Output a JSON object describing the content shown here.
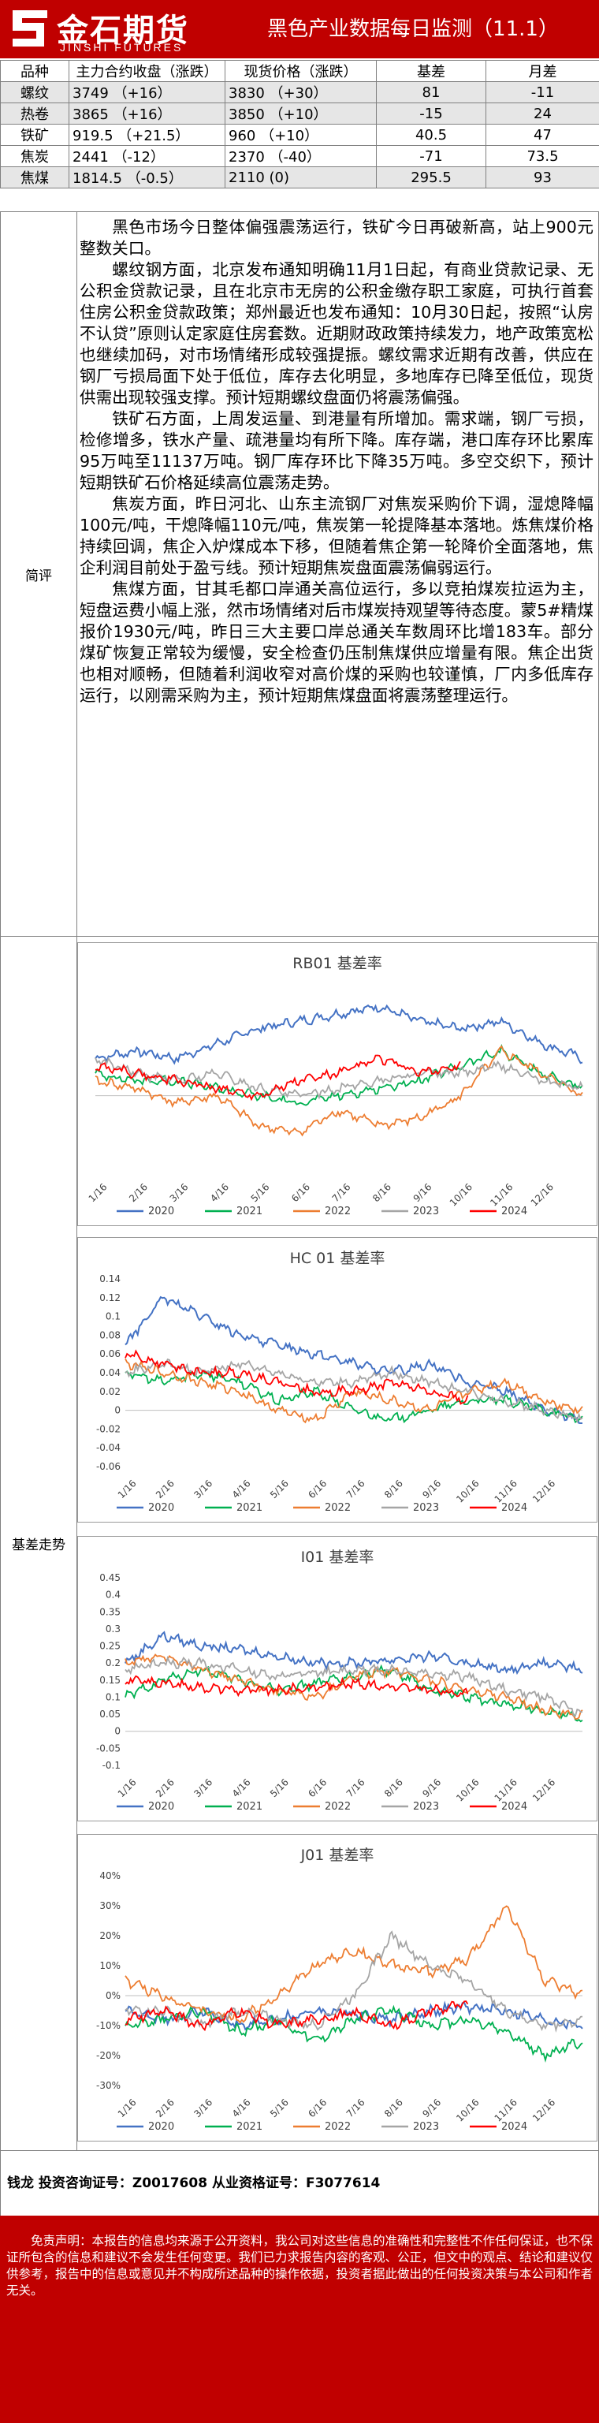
{
  "brand": {
    "name_cn": "金石期货",
    "name_en": "JINSHI FUTURES"
  },
  "report_title": "黑色产业数据每日监测（11.1）",
  "quote_table": {
    "headers": [
      "品种",
      "主力合约收盘（涨跌）",
      "现货价格（涨跌）",
      "基差",
      "月差"
    ],
    "rows": [
      {
        "name": "螺纹",
        "futures": "3749 （+16）",
        "spot": "3830 （+30）",
        "basis": "81",
        "spread": "-11"
      },
      {
        "name": "热卷",
        "futures": "3865 （+16）",
        "spot": "3850 （+10）",
        "basis": "-15",
        "spread": "24"
      },
      {
        "name": "铁矿",
        "futures": "919.5 （+21.5）",
        "spot": "960 （+10）",
        "basis": "40.5",
        "spread": "47"
      },
      {
        "name": "焦炭",
        "futures": "2441 （-12）",
        "spot": "2370 （-40）",
        "basis": "-71",
        "spread": "73.5"
      },
      {
        "name": "焦煤",
        "futures": "1814.5 （-0.5）",
        "spot": "2110 (0)",
        "basis": "295.5",
        "spread": "93"
      }
    ]
  },
  "commentary": {
    "label": "简评",
    "paragraphs": [
      "黑色市场今日整体偏强震荡运行，铁矿今日再破新高，站上900元整数关口。",
      "螺纹钢方面，北京发布通知明确11月1日起，有商业贷款记录、无公积金贷款记录，且在北京市无房的公积金缴存职工家庭，可执行首套住房公积金贷款政策；郑州最近也发布通知：10月30日起，按照“认房不认贷”原则认定家庭住房套数。近期财政政策持续发力，地产政策宽松也继续加码，对市场情绪形成较强提振。螺纹需求近期有改善，供应在钢厂亏损局面下处于低位，库存去化明显，多地库存已降至低位，现货供需出现较强支撑。预计短期螺纹盘面仍将震荡偏强。",
      "铁矿石方面，上周发运量、到港量有所增加。需求端，钢厂亏损，检修增多，铁水产量、疏港量均有所下降。库存端，港口库存环比累库95万吨至11137万吨。钢厂库存环比下降35万吨。多空交织下，预计短期铁矿石价格延续高位震荡走势。",
      "焦炭方面，昨日河北、山东主流钢厂对焦炭采购价下调，湿熄降幅100元/吨，干熄降幅110元/吨，焦炭第一轮提降基本落地。炼焦煤价格持续回调，焦企入炉煤成本下移，但随着焦企第一轮降价全面落地，焦企利润目前处于盈亏线。预计短期焦炭盘面震荡偏弱运行。",
      "焦煤方面，甘其毛都口岸通关高位运行，多以竞拍煤炭拉运为主，短盘运费小幅上涨，然市场情绪对后市煤炭持观望等待态度。蒙5#精煤报价1930元/吨，昨日三大主要口岸总通关车数周环比增183车。部分煤矿恢复正常较为缓慢，安全检查仍压制焦煤供应增量有限。焦企出货也相对顺畅，但随着利润收窄对高价煤的采购也较谨慎，厂内多低库存运行，以刚需采购为主，预计短期焦煤盘面将震荡整理运行。"
    ]
  },
  "charts_label": "基差走势",
  "colors": {
    "brand_red": "#c00000",
    "s2020": "#4472c4",
    "s2021": "#00b050",
    "s2022": "#ed7d31",
    "s2023": "#a5a5a5",
    "s2024": "#ff0000"
  },
  "chart_data": [
    {
      "type": "line",
      "title": "RB01 基差率",
      "x_ticks": [
        "1/16",
        "2/16",
        "3/16",
        "4/16",
        "5/16",
        "6/16",
        "7/16",
        "8/16",
        "9/16",
        "10/16",
        "11/16",
        "12/16"
      ],
      "ylim": [
        -0.1,
        0.15
      ],
      "y_ticks": [],
      "series": [
        {
          "name": "2020",
          "values": [
            0.05,
            0.06,
            0.05,
            0.07,
            0.09,
            0.1,
            0.11,
            0.12,
            0.1,
            0.09,
            0.1,
            0.07,
            0.05
          ]
        },
        {
          "name": "2021",
          "values": [
            0.03,
            0.02,
            0.02,
            0.01,
            0.0,
            -0.01,
            0.0,
            0.01,
            0.02,
            0.04,
            0.06,
            0.03,
            0.01
          ]
        },
        {
          "name": "2022",
          "values": [
            0.02,
            0.01,
            -0.01,
            0.0,
            -0.04,
            -0.05,
            -0.02,
            -0.04,
            -0.03,
            0.0,
            0.06,
            0.03,
            0.0
          ]
        },
        {
          "name": "2023",
          "values": [
            0.05,
            0.03,
            0.02,
            0.03,
            0.01,
            0.0,
            0.01,
            0.02,
            0.03,
            0.03,
            0.04,
            0.02,
            0.01
          ]
        },
        {
          "name": "2024",
          "values": [
            0.04,
            0.03,
            0.02,
            0.01,
            0.0,
            0.02,
            0.03,
            0.05,
            0.03,
            0.04,
            null,
            null,
            null
          ]
        }
      ]
    },
    {
      "type": "line",
      "title": "HC 01 基差率",
      "x_ticks": [
        "1/16",
        "2/16",
        "3/16",
        "4/16",
        "5/16",
        "6/16",
        "7/16",
        "8/16",
        "9/16",
        "10/16",
        "11/16",
        "12/16"
      ],
      "ylim": [
        -0.06,
        0.14
      ],
      "y_ticks": [
        "0.14",
        "0.12",
        "0.1",
        "0.08",
        "0.06",
        "0.04",
        "0.02",
        "0",
        "-0.02",
        "-0.04",
        "-0.06"
      ],
      "series": [
        {
          "name": "2020",
          "values": [
            0.07,
            0.12,
            0.1,
            0.08,
            0.07,
            0.06,
            0.05,
            0.04,
            0.05,
            0.03,
            0.02,
            0.0,
            -0.01
          ]
        },
        {
          "name": "2021",
          "values": [
            0.04,
            0.03,
            0.04,
            0.03,
            0.01,
            0.02,
            0.0,
            -0.01,
            0.0,
            0.01,
            0.01,
            0.0,
            -0.01
          ]
        },
        {
          "name": "2022",
          "values": [
            0.05,
            0.04,
            0.03,
            0.02,
            0.0,
            -0.01,
            0.02,
            0.01,
            0.0,
            0.02,
            0.03,
            0.01,
            0.0
          ]
        },
        {
          "name": "2023",
          "values": [
            0.04,
            0.05,
            0.04,
            0.05,
            0.04,
            0.03,
            0.03,
            0.04,
            0.03,
            0.02,
            0.01,
            0.0,
            -0.01
          ]
        },
        {
          "name": "2024",
          "values": [
            0.06,
            0.05,
            0.04,
            0.04,
            0.03,
            0.02,
            0.02,
            0.03,
            0.02,
            0.01,
            null,
            null,
            null
          ]
        }
      ]
    },
    {
      "type": "line",
      "title": "I01 基差率",
      "x_ticks": [
        "1/16",
        "2/16",
        "3/16",
        "4/16",
        "5/16",
        "6/16",
        "7/16",
        "8/16",
        "9/16",
        "10/16",
        "11/16",
        "12/16"
      ],
      "ylim": [
        -0.1,
        0.45
      ],
      "y_ticks": [
        "0.45",
        "0.4",
        "0.35",
        "0.3",
        "0.25",
        "0.2",
        "0.15",
        "0.1",
        "0.05",
        "0",
        "-0.05",
        "-0.1"
      ],
      "series": [
        {
          "name": "2020",
          "values": [
            0.2,
            0.28,
            0.25,
            0.24,
            0.22,
            0.2,
            0.2,
            0.21,
            0.22,
            0.2,
            0.18,
            0.2,
            0.18
          ]
        },
        {
          "name": "2021",
          "values": [
            0.1,
            0.15,
            0.18,
            0.15,
            0.12,
            0.14,
            0.16,
            0.18,
            0.12,
            0.1,
            0.08,
            0.06,
            0.04
          ]
        },
        {
          "name": "2022",
          "values": [
            0.2,
            0.22,
            0.18,
            0.15,
            0.12,
            0.1,
            0.16,
            0.18,
            0.15,
            0.12,
            0.1,
            0.06,
            0.05
          ]
        },
        {
          "name": "2023",
          "values": [
            0.18,
            0.2,
            0.2,
            0.18,
            0.16,
            0.17,
            0.18,
            0.18,
            0.17,
            0.16,
            0.12,
            0.1,
            0.05
          ]
        },
        {
          "name": "2024",
          "values": [
            0.15,
            0.14,
            0.13,
            0.12,
            0.12,
            0.13,
            0.14,
            0.13,
            0.12,
            0.11,
            null,
            null,
            null
          ]
        }
      ]
    },
    {
      "type": "line",
      "title": "J01 基差率",
      "x_ticks": [
        "1/16",
        "2/16",
        "3/16",
        "4/16",
        "5/16",
        "6/16",
        "7/16",
        "8/16",
        "9/16",
        "10/16",
        "11/16",
        "12/16"
      ],
      "ylim": [
        -30,
        40
      ],
      "y_ticks": [
        "40%",
        "30%",
        "20%",
        "10%",
        "0%",
        "-10%",
        "-20%",
        "-30%"
      ],
      "series": [
        {
          "name": "2020",
          "values": [
            -5,
            -8,
            -5,
            -10,
            -8,
            -5,
            -6,
            -8,
            -5,
            -4,
            -5,
            -8,
            -10
          ]
        },
        {
          "name": "2021",
          "values": [
            -10,
            -8,
            -5,
            -12,
            -8,
            -15,
            -8,
            -5,
            -10,
            -8,
            -12,
            -20,
            -15
          ]
        },
        {
          "name": "2022",
          "values": [
            5,
            0,
            -5,
            -8,
            0,
            10,
            15,
            10,
            8,
            12,
            30,
            5,
            0
          ]
        },
        {
          "name": "2023",
          "values": [
            -5,
            -5,
            -10,
            -5,
            -8,
            -10,
            0,
            20,
            10,
            5,
            -5,
            -10,
            -8
          ]
        },
        {
          "name": "2024",
          "values": [
            -8,
            -5,
            -10,
            -5,
            -10,
            -8,
            -6,
            -10,
            -5,
            -3,
            null,
            null,
            null
          ]
        }
      ]
    }
  ],
  "author": "钱龙 投资咨询证号：Z0017608 从业资格证号：F3077614",
  "disclaimer": "免责声明：本报告的信息均来源于公开资料，我公司对这些信息的准确性和完整性不作任何保证，也不保证所包含的信息和建议不会发生任何变更。我们已力求报告内容的客观、公正，但文中的观点、结论和建议仅供参考，报告中的信息或意见并不构成所述品种的操作依据，投资者据此做出的任何投资决策与本公司和作者无关。"
}
